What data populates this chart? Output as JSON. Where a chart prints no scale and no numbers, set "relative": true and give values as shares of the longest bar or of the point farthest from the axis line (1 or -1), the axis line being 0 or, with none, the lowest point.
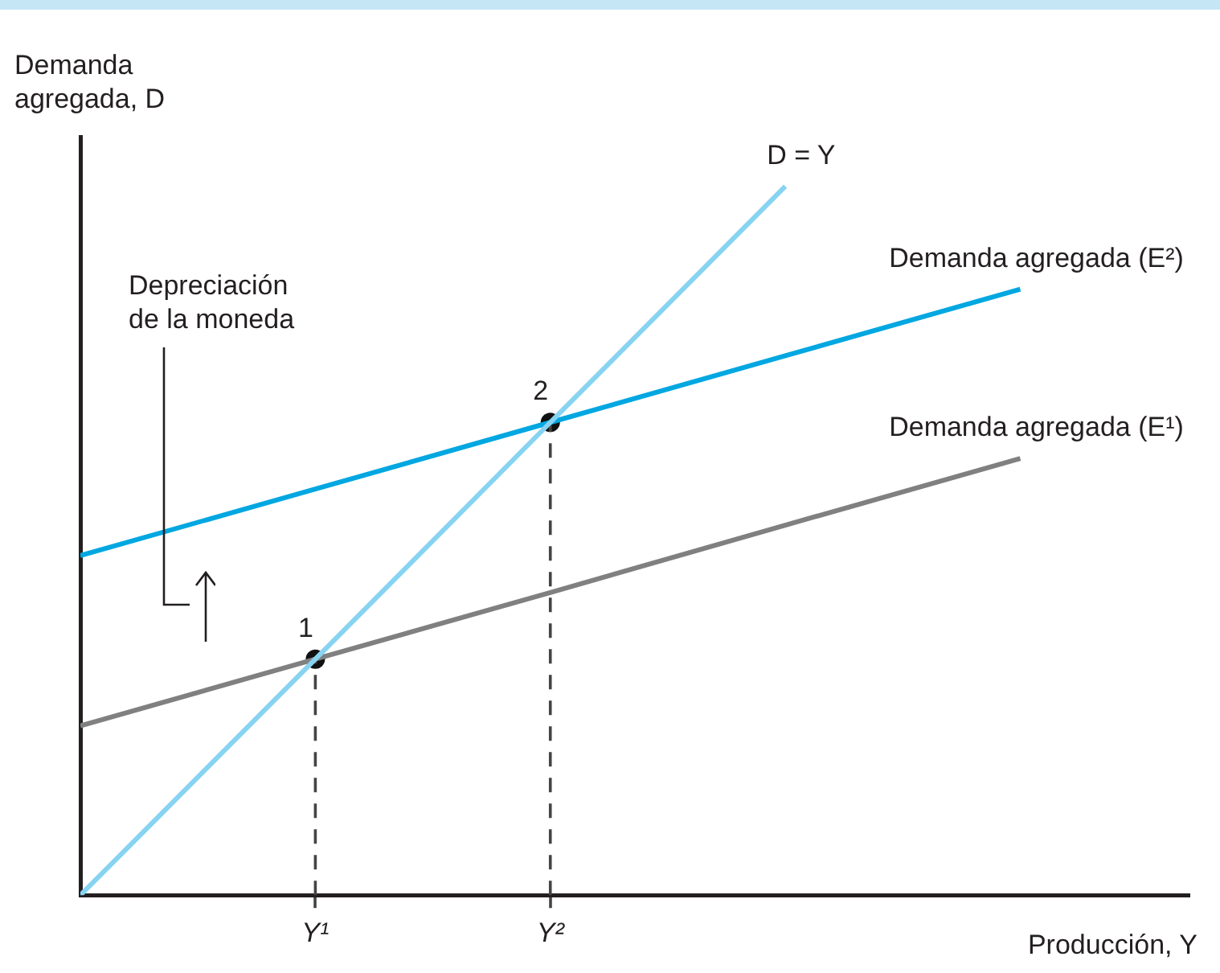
{
  "chart_data": {
    "type": "line",
    "relative": true,
    "xlabel": "Producción, Y",
    "ylabel": "Demanda agregada, D",
    "legend": false,
    "categories": [
      null,
      "Y¹",
      "Y²",
      null,
      null
    ],
    "series": [
      {
        "name": "D = Y",
        "marker": "none",
        "color": "#87d3f2",
        "values": [
          0,
          0.333,
          0.667,
          1,
          null
        ]
      },
      {
        "name": "Demanda agregada (E²)",
        "marker": "none",
        "color": "#00a7e1",
        "values": [
          0.479,
          0.573,
          0.667,
          0.761,
          0.855
        ]
      },
      {
        "name": "Demanda agregada (E¹)",
        "marker": "none",
        "color": "#808080",
        "values": [
          0.239,
          0.333,
          0.427,
          0.522,
          0.616
        ]
      },
      {
        "marker": "none",
        "line_style": "dashed",
        "color": "#444444",
        "x": [
          "Y¹",
          "Y¹"
        ],
        "values": [
          0,
          0.333
        ]
      },
      {
        "marker": "none",
        "line_style": "dashed",
        "color": "#444444",
        "x": [
          "Y²",
          "Y²"
        ],
        "values": [
          0,
          0.667
        ]
      },
      {
        "type": "scatter",
        "marker": "circle",
        "color": "#111111",
        "values": [
          null,
          0.333,
          0.667,
          null,
          null
        ]
      }
    ],
    "annotations": [
      {
        "text": "1",
        "x": "Y¹",
        "y": 0.333
      },
      {
        "text": "2",
        "x": "Y²",
        "y": 0.667
      },
      "Depreciación de la moneda"
    ]
  }
}
